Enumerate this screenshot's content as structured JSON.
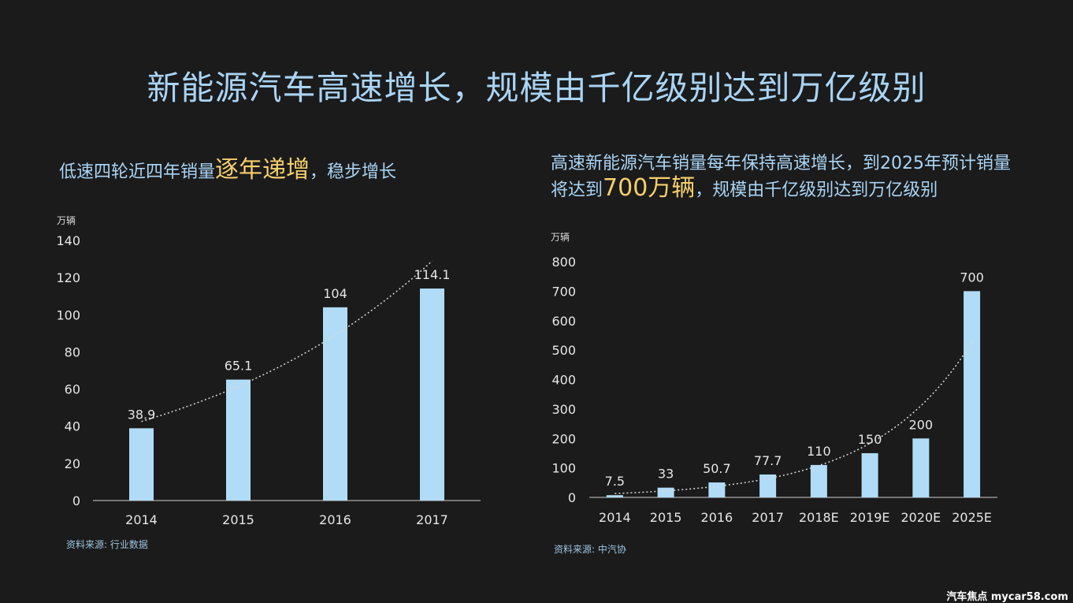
{
  "title": "新能源汽车高速增长，规模由千亿级别达到万亿级别",
  "left": {
    "subtitle_pre": "低速四轮近四年销量",
    "subtitle_hl": "逐年递增",
    "subtitle_post": "，稳步增长",
    "unit": "万辆",
    "source": "资料来源: 行业数据"
  },
  "right": {
    "subtitle_pre": "高速新能源汽车销量每年保持高速增长，到2025年预计销量将达到",
    "subtitle_hl": "700万辆",
    "subtitle_post": "，规模由千亿级别达到万亿级别",
    "unit": "万辆",
    "source": "资料来源: 中汽协"
  },
  "brand": "汽车焦点 mycar58.com",
  "chart_data": [
    {
      "type": "bar",
      "categories": [
        "2014",
        "2015",
        "2016",
        "2017"
      ],
      "values": [
        38.9,
        65.1,
        104,
        114.1
      ],
      "value_labels": [
        "38.9",
        "65.1",
        "104",
        "114.1"
      ],
      "yticks": [
        0,
        20,
        40,
        60,
        80,
        100,
        120,
        140
      ],
      "ylim": [
        0,
        140
      ],
      "ylabel": "万辆",
      "trendline": "dotted exponential",
      "bar_color": "#b0dcf7",
      "grid": false
    },
    {
      "type": "bar",
      "categories": [
        "2014",
        "2015",
        "2016",
        "2017",
        "2018E",
        "2019E",
        "2020E",
        "2025E"
      ],
      "values": [
        7.5,
        33,
        50.7,
        77.7,
        110,
        150,
        200,
        700
      ],
      "value_labels": [
        "7.5",
        "33",
        "50.7",
        "77.7",
        "110",
        "150",
        "200",
        "700"
      ],
      "yticks": [
        0,
        100,
        200,
        300,
        400,
        500,
        600,
        700,
        800
      ],
      "ylim": [
        0,
        800
      ],
      "ylabel": "万辆",
      "trendline": "dotted exponential",
      "bar_color": "#b0dcf7",
      "grid": false
    }
  ]
}
